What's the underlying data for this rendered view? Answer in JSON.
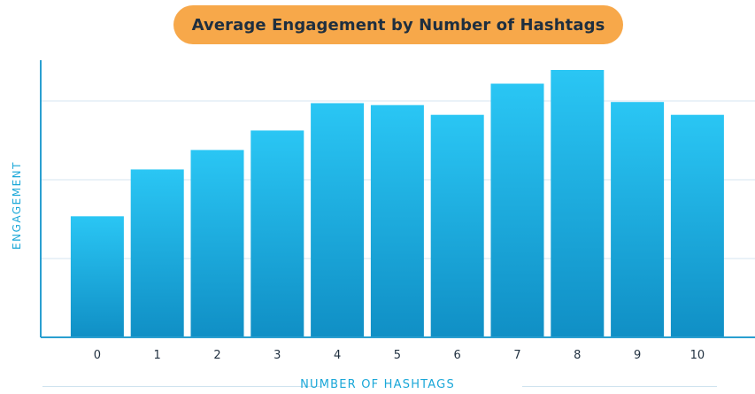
{
  "colors": {
    "title_bg": "#f7a84a",
    "title_text": "#1f2f3f",
    "axis_label": "#1aa7d8",
    "bar_top": "#2ac6f4",
    "bar_bottom": "#108fc5",
    "grid": "#d6e6f0",
    "axis": "#2a9fd0"
  },
  "chart_data": {
    "type": "bar",
    "title": "Average Engagement by Number of Hashtags",
    "xlabel": "NUMBER OF HASHTAGS",
    "ylabel": "ENGAGEMENT",
    "categories": [
      "0",
      "1",
      "2",
      "3",
      "4",
      "5",
      "6",
      "7",
      "8",
      "9",
      "10"
    ],
    "values": [
      31,
      43,
      48,
      53,
      60,
      59.5,
      57,
      65,
      68.5,
      60.3,
      57
    ],
    "ylim": [
      0,
      71
    ],
    "y_ticks_labeled": false,
    "grid": true,
    "legend": "none"
  }
}
